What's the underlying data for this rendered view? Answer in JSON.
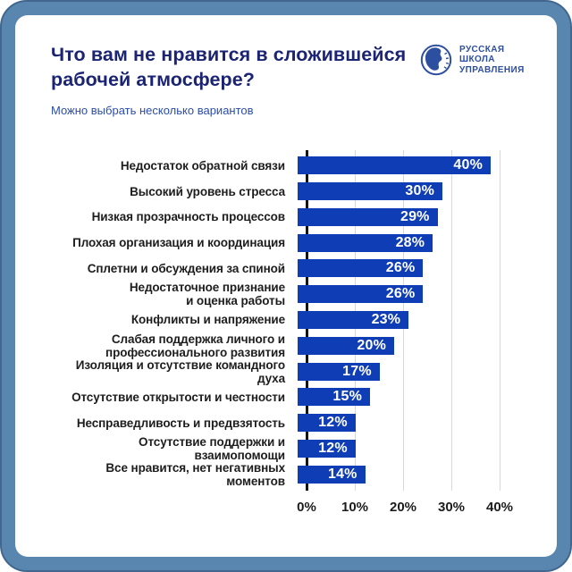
{
  "frame": {
    "outer_color": "#5886af",
    "outer_stroke": "#41678e",
    "card_color": "#ffffff"
  },
  "header": {
    "title": "Что вам не нравится в сложившейся рабочей атмосфере?",
    "subtitle": "Можно выбрать несколько вариантов",
    "title_color": "#1a2473",
    "subtitle_color": "#2b4dab",
    "logo": {
      "lines": [
        "РУССКАЯ",
        "ШКОЛА",
        "УПРАВЛЕНИЯ"
      ],
      "color": "#2d4f9f"
    }
  },
  "chart_data": {
    "type": "bar",
    "orientation": "horizontal",
    "title": "Что вам не нравится в сложившейся рабочей атмосфере?",
    "subtitle": "Можно выбрать несколько вариантов",
    "categories": [
      "Недостаток обратной связи",
      "Высокий уровень стресса",
      "Низкая прозрачность процессов",
      "Плохая организация и координация",
      "Сплетни и обсуждения за спиной",
      "Недостаточное признание\nи оценка работы",
      "Конфликты и напряжение",
      "Слабая поддержка личного и\nпрофессионального развития",
      "Изоляция и отсутствие командного духа",
      "Отсутствие открытости и честности",
      "Несправедливость и предвзятость",
      "Отсутствие поддержки и взаимопомощи",
      "Все нравится, нет негативных моментов"
    ],
    "values": [
      40,
      30,
      29,
      28,
      26,
      26,
      23,
      20,
      17,
      15,
      12,
      12,
      14
    ],
    "value_labels": [
      "40%",
      "30%",
      "29%",
      "28%",
      "26%",
      "26%",
      "23%",
      "20%",
      "17%",
      "15%",
      "12%",
      "12%",
      "14%"
    ],
    "x_ticks": [
      "0%",
      "10%",
      "20%",
      "30%",
      "40%"
    ],
    "xlim": [
      0,
      40
    ],
    "grid": true,
    "bar_color": "#0f3db6",
    "value_label_color": "#ffffff",
    "gridline_color": "#d8d8d8",
    "axis_color": "#151515",
    "legend": "none"
  }
}
